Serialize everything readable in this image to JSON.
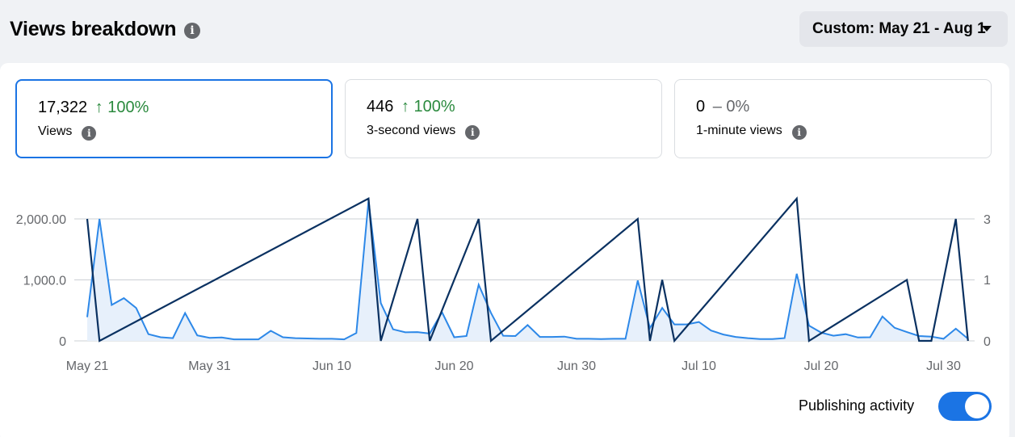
{
  "header": {
    "title": "Views breakdown",
    "date_range": "Custom: May 21 - Aug 1"
  },
  "metrics": [
    {
      "value": "17,322",
      "arrow": "↑",
      "change": "100%",
      "label": "Views",
      "active": true
    },
    {
      "value": "446",
      "arrow": "↑",
      "change": "100%",
      "label": "3-second views",
      "active": false
    },
    {
      "value": "0",
      "arrow": "–",
      "change": "0%",
      "label": "1-minute views",
      "active": false
    }
  ],
  "colors": {
    "views_line": "#2d88e8",
    "views_fill": "#e7f0fb",
    "publishing_line": "#0a3161",
    "accent": "#1b74e4",
    "positive": "#2b8a3e"
  },
  "chart_data": {
    "type": "line",
    "title": "",
    "x_tick_labels": [
      "May 21",
      "May 31",
      "Jun 10",
      "Jun 20",
      "Jun 30",
      "Jul 10",
      "Jul 20",
      "Jul 30"
    ],
    "y_left_tick_labels": [
      "0",
      "1,000.0",
      "2,000.00"
    ],
    "y_left_ticks": [
      0,
      1000,
      2000
    ],
    "y_left_range": [
      0,
      2000
    ],
    "y_right_tick_labels": [
      "0",
      "1",
      "3"
    ],
    "y_right_range": [
      0,
      3
    ],
    "grid": true,
    "start_date": "May 21",
    "series": [
      {
        "axis": "left",
        "filled": true,
        "x": [
          0,
          1,
          2,
          3,
          4,
          5,
          6,
          7,
          8,
          9,
          10,
          11,
          12,
          13,
          14,
          15,
          16,
          17,
          18,
          19,
          20,
          21,
          22,
          23,
          24,
          25,
          26,
          27,
          28,
          29,
          30,
          31,
          32,
          33,
          34,
          35,
          36,
          37,
          38,
          39,
          40,
          41,
          42,
          43,
          44,
          45,
          46,
          47,
          48,
          49,
          50,
          51,
          52,
          53,
          54,
          55,
          56,
          57,
          58,
          59,
          60,
          61,
          62,
          63,
          64,
          65,
          66,
          67,
          68,
          69,
          70,
          71,
          72
        ],
        "values": [
          390,
          2000,
          590,
          700,
          540,
          110,
          60,
          45,
          455,
          90,
          50,
          55,
          25,
          25,
          25,
          165,
          60,
          45,
          40,
          35,
          35,
          25,
          130,
          2300,
          620,
          190,
          140,
          145,
          120,
          470,
          60,
          80,
          920,
          460,
          85,
          80,
          260,
          65,
          65,
          70,
          35,
          35,
          30,
          35,
          35,
          990,
          210,
          540,
          270,
          270,
          310,
          170,
          105,
          65,
          45,
          30,
          30,
          45,
          1100,
          250,
          135,
          85,
          110,
          55,
          60,
          400,
          215,
          145,
          80,
          70,
          35,
          200,
          35
        ]
      },
      {
        "axis": "right",
        "filled": false,
        "x": [
          0,
          1,
          23,
          24,
          27,
          28,
          32,
          33,
          45,
          46,
          47,
          48,
          58,
          59,
          67,
          68,
          69,
          71,
          72
        ],
        "values": [
          3,
          0,
          3.5,
          0,
          3,
          0,
          3,
          0,
          3,
          0,
          1.5,
          0,
          3.5,
          0,
          1.5,
          0,
          0,
          3,
          0
        ]
      }
    ]
  },
  "footer": {
    "toggle_label": "Publishing activity",
    "toggle_on": true
  }
}
